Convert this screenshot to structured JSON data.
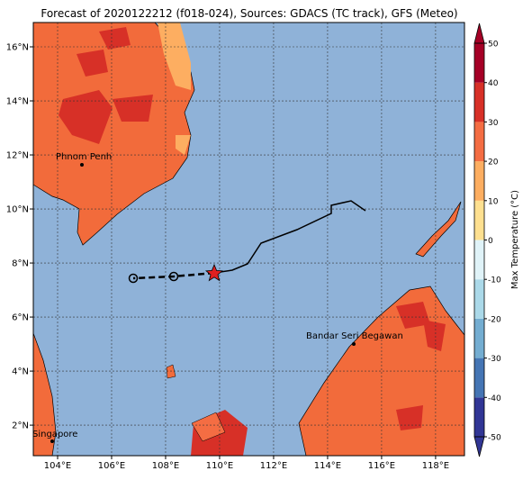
{
  "map": {
    "title": "Forecast of 2020122212 (f018-024), Sources: GDACS (TC track), GFS (Meteo)",
    "xlim": [
      103.1,
      119.07
    ],
    "ylim": [
      0.87,
      16.9
    ],
    "xticks": [
      {
        "value": 104,
        "label": "104°E"
      },
      {
        "value": 106,
        "label": "106°E"
      },
      {
        "value": 108,
        "label": "108°E"
      },
      {
        "value": 110,
        "label": "110°E"
      },
      {
        "value": 112,
        "label": "112°E"
      },
      {
        "value": 114,
        "label": "114°E"
      },
      {
        "value": 116,
        "label": "116°E"
      },
      {
        "value": 118,
        "label": "118°E"
      }
    ],
    "yticks": [
      {
        "value": 2,
        "label": "2°N"
      },
      {
        "value": 4,
        "label": "4°N"
      },
      {
        "value": 6,
        "label": "6°N"
      },
      {
        "value": 8,
        "label": "8°N"
      },
      {
        "value": 10,
        "label": "10°N"
      },
      {
        "value": 12,
        "label": "12°N"
      },
      {
        "value": 14,
        "label": "14°N"
      },
      {
        "value": 16,
        "label": "16°N"
      }
    ],
    "grid": true,
    "cities": [
      {
        "name": "Phnom Penh"
      },
      {
        "name": "Bandar Seri Begawan"
      },
      {
        "name": "Singapore"
      }
    ],
    "colorbar": {
      "label": "Max Temperature (°C)",
      "lim": [
        -50,
        50
      ],
      "ticks": [
        -50,
        -40,
        -30,
        -20,
        -10,
        0,
        10,
        20,
        30,
        40,
        50
      ],
      "colors": [
        "#313695",
        "#4575b4",
        "#74add1",
        "#abd9e9",
        "#e0f3f8",
        "#fee090",
        "#fdae61",
        "#f46d43",
        "#d73027",
        "#a50026"
      ]
    }
  }
}
